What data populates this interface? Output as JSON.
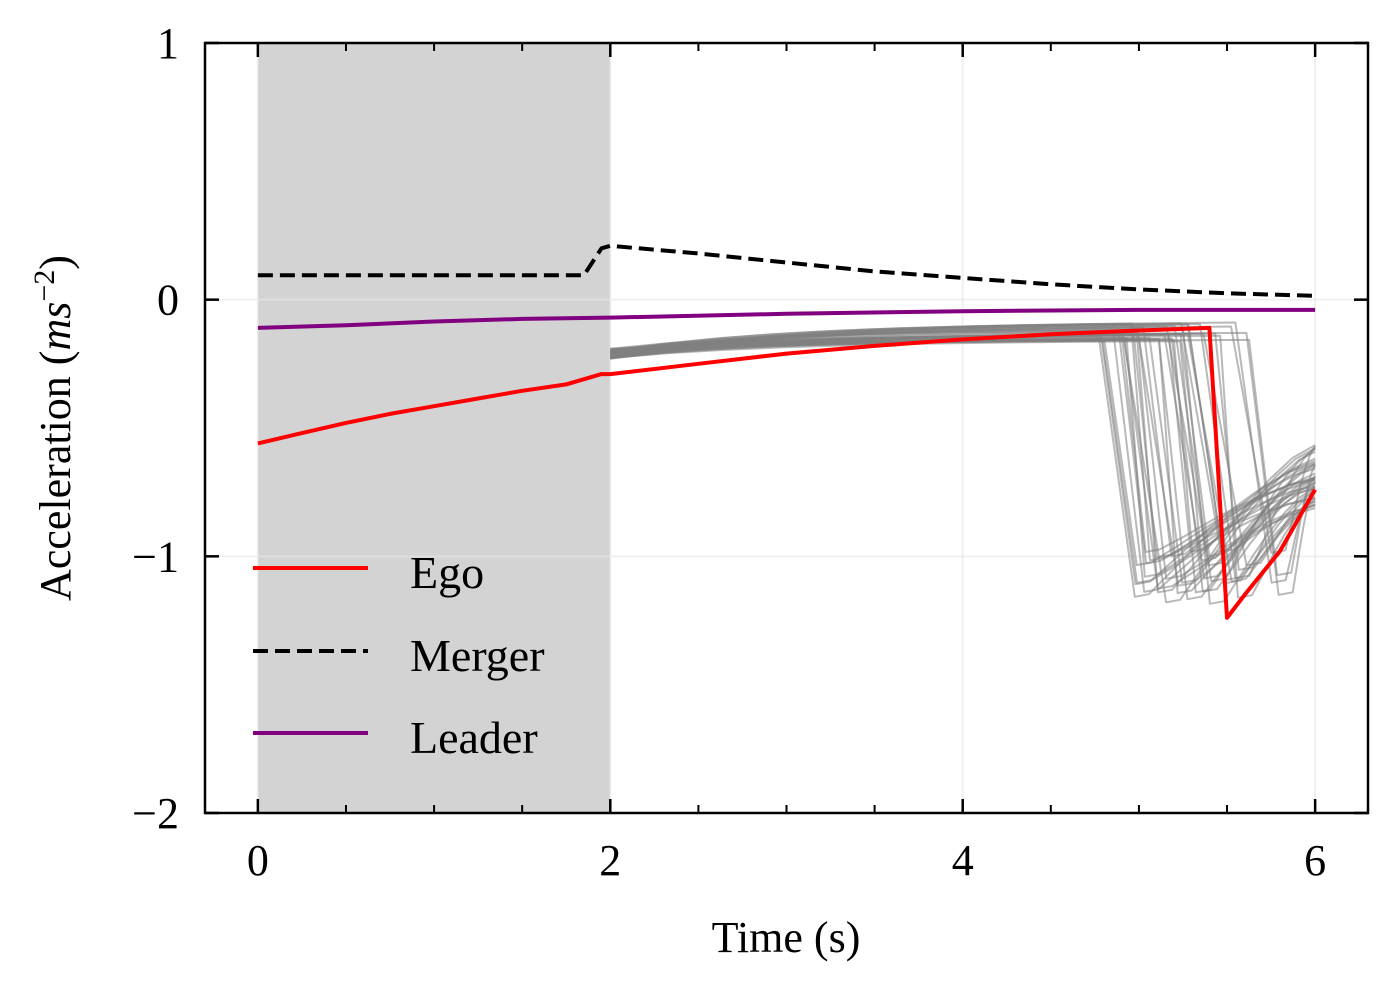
{
  "chart_data": {
    "type": "line",
    "xlabel": "Time (s)",
    "ylabel": {
      "main": "Acceleration (",
      "unit_base": "ms",
      "unit_exp": "−2",
      "close": ")"
    },
    "xlim": [
      -0.3,
      6.3
    ],
    "ylim": [
      -2,
      1
    ],
    "xticks": [
      0,
      2,
      4,
      6
    ],
    "xtick_labels": [
      "0",
      "2",
      "4",
      "6"
    ],
    "yticks": [
      1,
      0,
      -1,
      -2
    ],
    "ytick_labels": [
      "1",
      "0",
      "−1",
      "−2"
    ],
    "x_minor_step": 0.5,
    "grid": true,
    "legend_position": "lower-left",
    "shaded_region": {
      "x": [
        0,
        2
      ],
      "color": "#d3d3d3"
    },
    "series": [
      {
        "name": "Ego",
        "color": "#ff0000",
        "dash": "solid",
        "points": [
          [
            0,
            -0.56
          ],
          [
            0.25,
            -0.52
          ],
          [
            0.5,
            -0.48
          ],
          [
            0.75,
            -0.445
          ],
          [
            1.0,
            -0.415
          ],
          [
            1.25,
            -0.385
          ],
          [
            1.5,
            -0.355
          ],
          [
            1.75,
            -0.33
          ],
          [
            1.95,
            -0.29
          ],
          [
            2.0,
            -0.29
          ],
          [
            2.5,
            -0.25
          ],
          [
            3.0,
            -0.21
          ],
          [
            3.5,
            -0.18
          ],
          [
            4.0,
            -0.155
          ],
          [
            4.5,
            -0.135
          ],
          [
            5.0,
            -0.12
          ],
          [
            5.4,
            -0.11
          ],
          [
            5.5,
            -1.24
          ],
          [
            5.6,
            -1.15
          ],
          [
            5.8,
            -0.98
          ],
          [
            6.0,
            -0.74
          ]
        ]
      },
      {
        "name": "Merger",
        "color": "#000000",
        "dash": "dashed",
        "points": [
          [
            0,
            0.095
          ],
          [
            1.85,
            0.095
          ],
          [
            1.95,
            0.2
          ],
          [
            2.0,
            0.21
          ],
          [
            2.5,
            0.18
          ],
          [
            3.0,
            0.145
          ],
          [
            3.5,
            0.11
          ],
          [
            4.0,
            0.085
          ],
          [
            4.5,
            0.06
          ],
          [
            5.0,
            0.04
          ],
          [
            5.5,
            0.025
          ],
          [
            6.0,
            0.015
          ]
        ]
      },
      {
        "name": "Leader",
        "color": "#800080",
        "dash": "solid",
        "points": [
          [
            0,
            -0.11
          ],
          [
            0.5,
            -0.1
          ],
          [
            1.0,
            -0.085
          ],
          [
            1.5,
            -0.075
          ],
          [
            2.0,
            -0.07
          ],
          [
            3.0,
            -0.055
          ],
          [
            4.0,
            -0.045
          ],
          [
            5.0,
            -0.04
          ],
          [
            6.0,
            -0.04
          ]
        ]
      }
    ],
    "samples": {
      "color": "#808080",
      "count": 40,
      "x_start": 2.0,
      "y_start_range": [
        -0.23,
        -0.19
      ],
      "y_plateau_range": [
        -0.16,
        -0.08
      ],
      "drop_time_range": [
        4.75,
        5.65
      ],
      "y_min_range": [
        -1.19,
        -0.98
      ],
      "y_end_range": [
        -0.82,
        -0.55
      ]
    }
  },
  "legend": {
    "items": [
      {
        "label": "Ego",
        "color": "#ff0000",
        "dash": "solid"
      },
      {
        "label": "Merger",
        "color": "#000000",
        "dash": "dashed"
      },
      {
        "label": "Leader",
        "color": "#800080",
        "dash": "solid"
      }
    ]
  }
}
